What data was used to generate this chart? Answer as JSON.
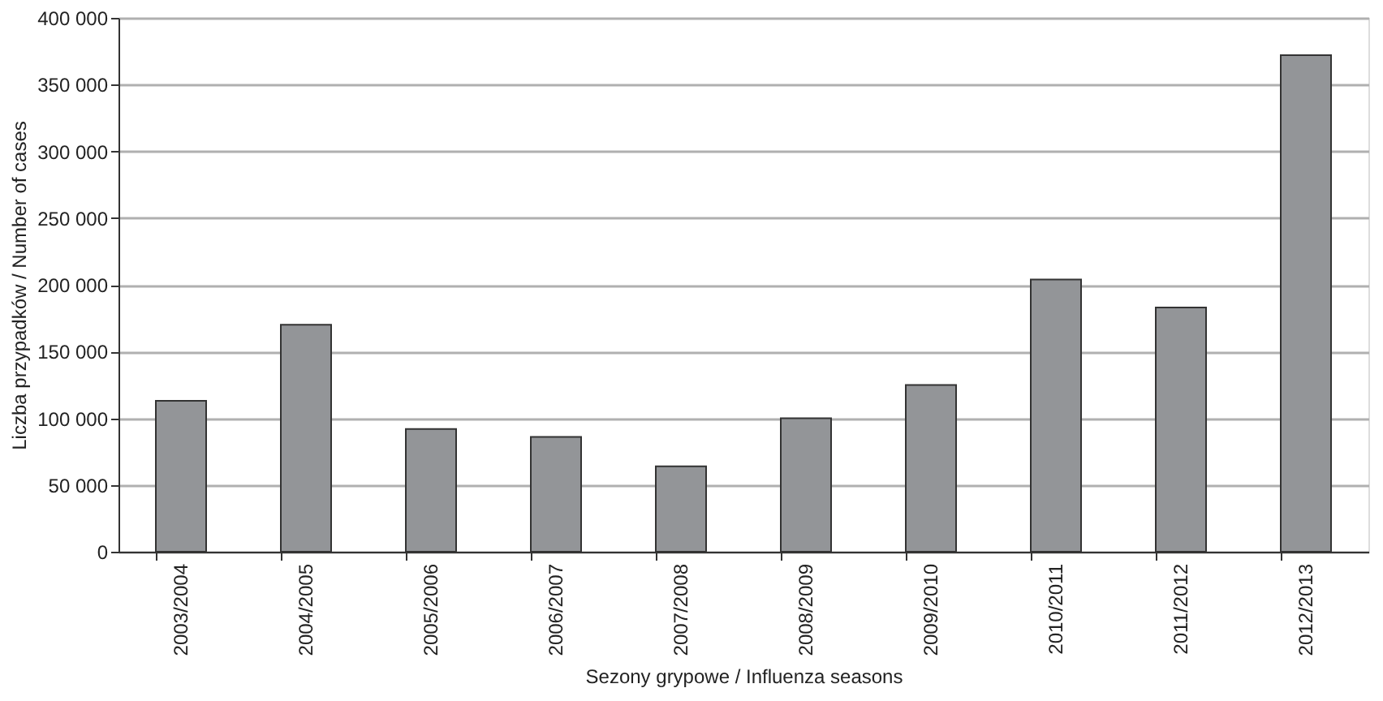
{
  "chart_data": {
    "type": "bar",
    "categories": [
      "2003/2004",
      "2004/2005",
      "2005/2006",
      "2006/2007",
      "2007/2008",
      "2008/2009",
      "2009/2010",
      "2010/2011",
      "2011/2012",
      "2012/2013"
    ],
    "values": [
      113000,
      170000,
      92000,
      86000,
      64000,
      100000,
      125000,
      204000,
      183000,
      372000
    ],
    "color": "#939598",
    "xlabel": "Sezony grypowe / Influenza seasons",
    "ylabel": "Liczba przypadków / Number of cases",
    "ylim": [
      0,
      400000
    ],
    "yticks": [
      {
        "value": 0,
        "label": "0"
      },
      {
        "value": 50000,
        "label": "50 000"
      },
      {
        "value": 100000,
        "label": "100 000"
      },
      {
        "value": 150000,
        "label": "150 000"
      },
      {
        "value": 200000,
        "label": "200 000"
      },
      {
        "value": 250000,
        "label": "250 000"
      },
      {
        "value": 300000,
        "label": "300 000"
      },
      {
        "value": 350000,
        "label": "350 000"
      },
      {
        "value": 400000,
        "label": "400 000"
      }
    ],
    "grid": "y"
  }
}
